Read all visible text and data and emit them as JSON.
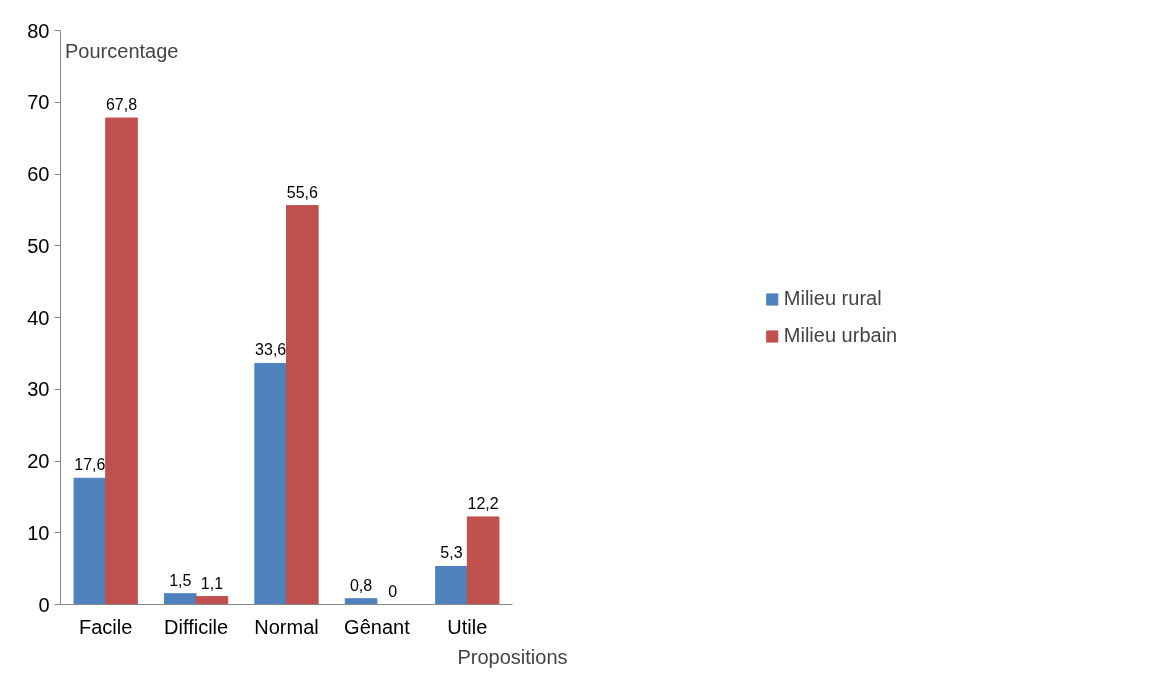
{
  "chart_data": {
    "type": "bar",
    "ylabel": "Pourcentage",
    "xlabel": "Propositions",
    "categories": [
      "Facile",
      "Difficile",
      "Normal",
      "Gênant",
      "Utile"
    ],
    "series": [
      {
        "name": "Milieu rural",
        "color": "#4f81bd",
        "values": [
          17.6,
          1.5,
          33.6,
          0.8,
          5.3
        ],
        "value_labels": [
          "17,6",
          "1,5",
          "33,6",
          "0,8",
          "5,3"
        ]
      },
      {
        "name": "Milieu urbain",
        "color": "#c0504d",
        "values": [
          67.8,
          1.1,
          55.6,
          0,
          12.2
        ],
        "value_labels": [
          "67,8",
          "1,1",
          "55,6",
          "0",
          "12,2"
        ]
      }
    ],
    "ylim": [
      0,
      80
    ],
    "yticks": [
      0,
      10,
      20,
      30,
      40,
      50,
      60,
      70,
      80
    ],
    "grid": false,
    "legend": "right"
  }
}
